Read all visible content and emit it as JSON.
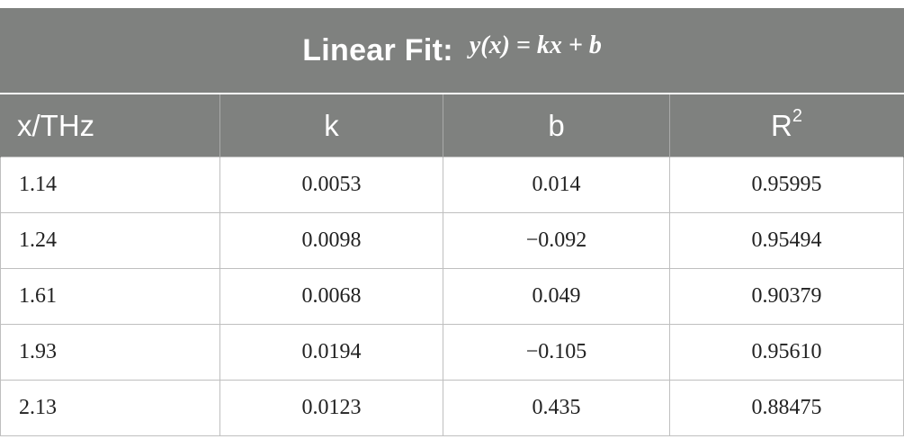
{
  "table": {
    "title": "Linear Fit:",
    "formula": "y(x) = kx + b",
    "headers": {
      "x": "x/THz",
      "k": "k",
      "b": "b",
      "r2_base": "R",
      "r2_sup": "2"
    },
    "rows": [
      {
        "x": "1.14",
        "k": "0.0053",
        "b": "0.014",
        "r2": "0.95995"
      },
      {
        "x": "1.24",
        "k": "0.0098",
        "b": "−0.092",
        "r2": "0.95494"
      },
      {
        "x": "1.61",
        "k": "0.0068",
        "b": "0.049",
        "r2": "0.90379"
      },
      {
        "x": "1.93",
        "k": "0.0194",
        "b": "−0.105",
        "r2": "0.95610"
      },
      {
        "x": "2.13",
        "k": "0.0123",
        "b": "0.435",
        "r2": "0.88475"
      }
    ]
  }
}
